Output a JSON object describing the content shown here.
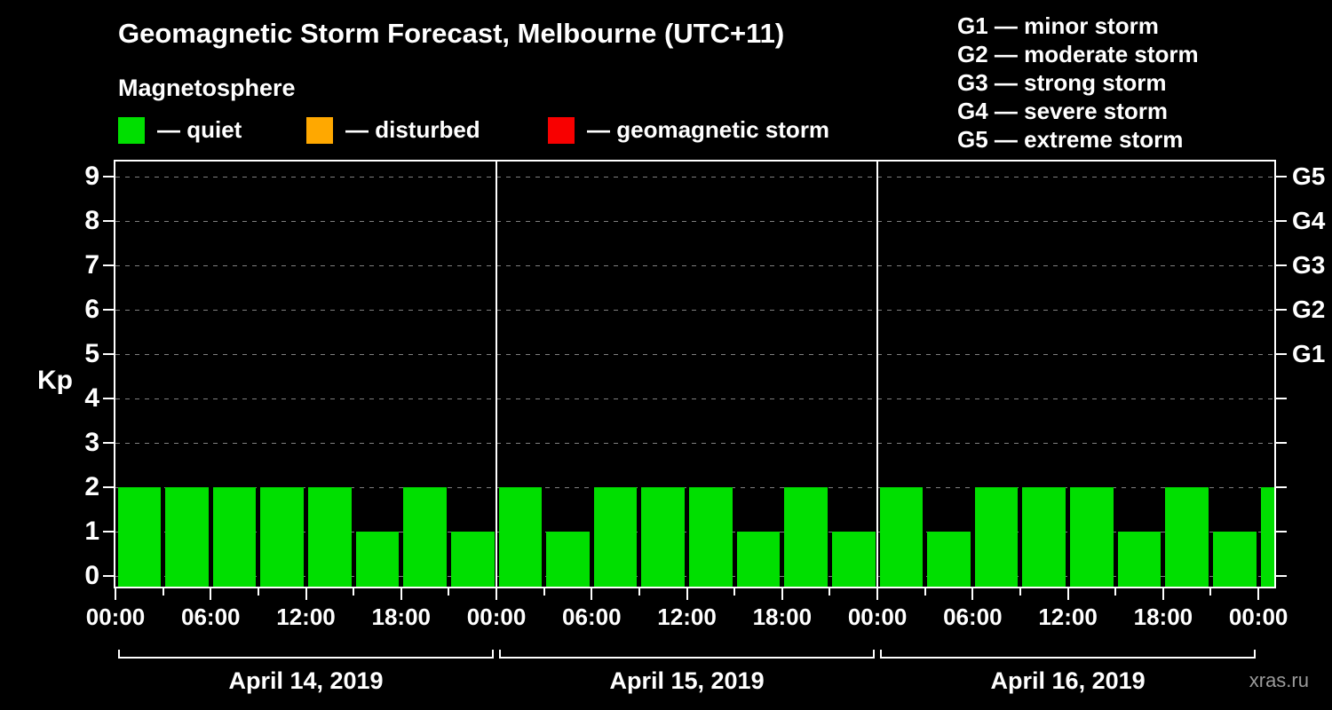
{
  "title": "Geomagnetic Storm Forecast, Melbourne (UTC+11)",
  "subtitle": "Magnetosphere",
  "watermark": "xras.ru",
  "colors": {
    "quiet": "#00df00",
    "disturbed": "#ffa800",
    "storm": "#f80000",
    "grid": "#808080",
    "axis": "#ffffff",
    "background": "#000000"
  },
  "kp_legend": [
    {
      "color_key": "quiet",
      "label": "— quiet"
    },
    {
      "color_key": "disturbed",
      "label": "— disturbed"
    },
    {
      "color_key": "storm",
      "label": "— geomagnetic storm"
    }
  ],
  "g_legend": [
    "G1 — minor storm",
    "G2 — moderate storm",
    "G3 — strong storm",
    "G4 — severe storm",
    "G5 — extreme storm"
  ],
  "chart_data": {
    "type": "bar",
    "title": "Geomagnetic Storm Forecast, Melbourne (UTC+11)",
    "ylabel": "Kp",
    "ylim": [
      0,
      9.6
    ],
    "yticks": [
      0,
      1,
      2,
      3,
      4,
      5,
      6,
      7,
      8,
      9
    ],
    "grid": "dashed horizontal",
    "right_axis_labels": [
      {
        "value": 5,
        "label": "G1"
      },
      {
        "value": 6,
        "label": "G2"
      },
      {
        "value": 7,
        "label": "G3"
      },
      {
        "value": 8,
        "label": "G4"
      },
      {
        "value": 9,
        "label": "G5"
      }
    ],
    "bar_interval_hours": 3,
    "axis_total_hours": 73,
    "xtick_step_hours": 6,
    "xtick_labels": [
      "00:00",
      "06:00",
      "12:00",
      "18:00",
      "00:00",
      "06:00",
      "12:00",
      "18:00",
      "00:00",
      "06:00",
      "12:00",
      "18:00",
      "00:00"
    ],
    "days": [
      {
        "label": "April 14, 2019",
        "values": [
          2,
          2,
          2,
          2,
          2,
          1,
          2,
          1
        ]
      },
      {
        "label": "April 15, 2019",
        "values": [
          2,
          1,
          2,
          2,
          2,
          1,
          2,
          1
        ]
      },
      {
        "label": "April 16, 2019",
        "values": [
          2,
          1,
          2,
          2,
          2,
          1,
          2,
          1
        ]
      }
    ],
    "next_interval_value": 2,
    "thresholds": {
      "disturbed_min": 4,
      "storm_min": 5
    }
  }
}
